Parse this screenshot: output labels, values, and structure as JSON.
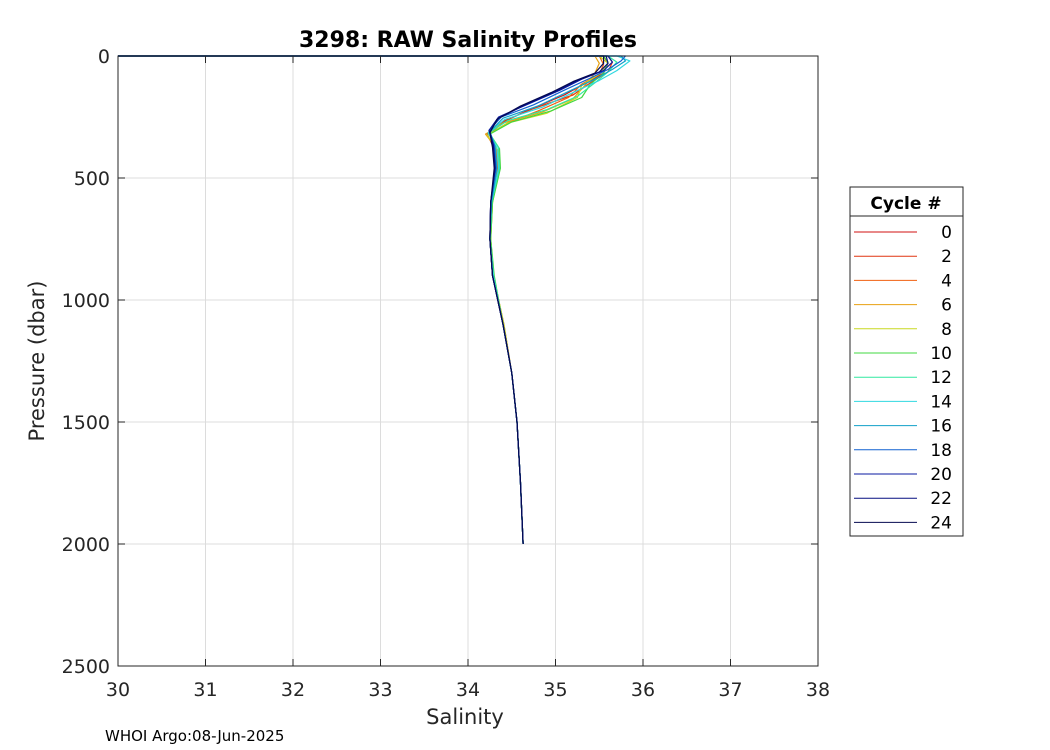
{
  "chart_data": {
    "type": "line",
    "title": "3298: RAW Salinity Profiles",
    "xlabel": "Salinity",
    "ylabel": "Pressure (dbar)",
    "xlim": [
      30,
      38
    ],
    "ylim": [
      0,
      2500
    ],
    "y_reversed": true,
    "grid": true,
    "xticks": [
      "30",
      "31",
      "32",
      "33",
      "34",
      "35",
      "36",
      "37",
      "38"
    ],
    "yticks": [
      "0",
      "500",
      "1000",
      "1500",
      "2000",
      "2500"
    ],
    "legend": {
      "title": "Cycle #",
      "placement": "outside-right",
      "entries": [
        "0",
        "2",
        "4",
        "6",
        "8",
        "10",
        "12",
        "14",
        "16",
        "18",
        "20",
        "22",
        "24"
      ],
      "colors": [
        "#d01010",
        "#e03510",
        "#f06010",
        "#e8a010",
        "#c8d820",
        "#40d840",
        "#30e8a0",
        "#30d8e0",
        "#10a0c8",
        "#1060d0",
        "#0a1aa0",
        "#050e80",
        "#050a50"
      ]
    },
    "series": [
      {
        "name": "0",
        "color": "#d01010",
        "x": [
          30.0,
          35.55,
          35.6,
          35.55,
          35.35,
          35.1,
          34.7,
          34.4,
          34.25,
          34.3,
          34.32,
          34.26,
          34.25,
          34.28,
          34.4,
          34.5,
          34.56,
          34.6,
          34.63
        ],
        "y": [
          0,
          0,
          30,
          70,
          110,
          160,
          220,
          270,
          320,
          380,
          460,
          600,
          750,
          900,
          1100,
          1300,
          1500,
          1750,
          2000
        ]
      },
      {
        "name": "2",
        "color": "#e03510",
        "x": [
          30.0,
          35.6,
          35.65,
          35.6,
          35.4,
          35.2,
          34.75,
          34.42,
          34.22,
          34.3,
          34.33,
          34.27,
          34.26,
          34.29,
          34.41,
          34.5,
          34.56,
          34.6,
          34.63
        ],
        "y": [
          0,
          0,
          25,
          65,
          110,
          160,
          215,
          265,
          320,
          380,
          460,
          600,
          750,
          900,
          1100,
          1300,
          1500,
          1750,
          2000
        ]
      },
      {
        "name": "4",
        "color": "#f06010",
        "x": [
          30.0,
          35.5,
          35.55,
          35.5,
          35.3,
          35.15,
          34.8,
          34.45,
          34.24,
          34.32,
          34.34,
          34.27,
          34.25,
          34.28,
          34.4,
          34.5,
          34.56,
          34.6,
          34.63
        ],
        "y": [
          0,
          0,
          35,
          75,
          115,
          170,
          225,
          275,
          320,
          380,
          460,
          600,
          750,
          900,
          1100,
          1300,
          1500,
          1750,
          2000
        ]
      },
      {
        "name": "6",
        "color": "#e8a010",
        "x": [
          30.0,
          35.45,
          35.5,
          35.45,
          35.35,
          35.2,
          34.85,
          34.4,
          34.2,
          34.33,
          34.35,
          34.28,
          34.26,
          34.29,
          34.4,
          34.5,
          34.56,
          34.6,
          34.63
        ],
        "y": [
          0,
          0,
          30,
          70,
          115,
          175,
          230,
          275,
          320,
          380,
          460,
          600,
          750,
          900,
          1100,
          1300,
          1500,
          1750,
          2000
        ]
      },
      {
        "name": "8",
        "color": "#c8d820",
        "x": [
          30.0,
          35.5,
          35.6,
          35.5,
          35.3,
          35.25,
          34.9,
          34.45,
          34.22,
          34.34,
          34.36,
          34.28,
          34.26,
          34.29,
          34.41,
          34.5,
          34.56,
          34.6,
          34.63
        ],
        "y": [
          0,
          0,
          30,
          75,
          120,
          170,
          235,
          275,
          325,
          385,
          460,
          600,
          750,
          900,
          1100,
          1300,
          1500,
          1750,
          2000
        ]
      },
      {
        "name": "10",
        "color": "#40d840",
        "x": [
          30.0,
          35.55,
          35.6,
          35.55,
          35.4,
          35.3,
          34.95,
          34.5,
          34.25,
          34.36,
          34.37,
          34.28,
          34.26,
          34.3,
          34.4,
          34.5,
          34.56,
          34.6,
          34.63
        ],
        "y": [
          0,
          0,
          25,
          70,
          115,
          170,
          225,
          270,
          320,
          380,
          460,
          600,
          750,
          900,
          1100,
          1300,
          1500,
          1750,
          2000
        ]
      },
      {
        "name": "12",
        "color": "#30e8a0",
        "x": [
          30.0,
          35.6,
          35.7,
          35.6,
          35.45,
          35.25,
          34.9,
          34.45,
          34.24,
          34.35,
          34.36,
          34.27,
          34.25,
          34.29,
          34.4,
          34.5,
          34.56,
          34.6,
          34.63
        ],
        "y": [
          0,
          0,
          25,
          65,
          110,
          165,
          220,
          265,
          315,
          375,
          460,
          600,
          750,
          900,
          1100,
          1300,
          1500,
          1750,
          2000
        ]
      },
      {
        "name": "14",
        "color": "#30d8e0",
        "x": [
          30.0,
          35.7,
          35.85,
          35.7,
          35.5,
          35.2,
          34.85,
          34.42,
          34.23,
          34.33,
          34.35,
          34.27,
          34.25,
          34.29,
          34.4,
          34.5,
          34.56,
          34.6,
          34.63
        ],
        "y": [
          0,
          0,
          20,
          60,
          100,
          150,
          210,
          260,
          315,
          375,
          460,
          600,
          750,
          900,
          1100,
          1300,
          1500,
          1750,
          2000
        ]
      },
      {
        "name": "16",
        "color": "#10a0c8",
        "x": [
          30.0,
          35.75,
          35.8,
          35.65,
          35.45,
          35.15,
          34.8,
          34.4,
          34.25,
          34.31,
          34.33,
          34.27,
          34.25,
          34.28,
          34.4,
          34.5,
          34.56,
          34.6,
          34.63
        ],
        "y": [
          0,
          0,
          20,
          55,
          95,
          145,
          205,
          255,
          310,
          370,
          460,
          600,
          750,
          900,
          1100,
          1300,
          1500,
          1750,
          2000
        ]
      },
      {
        "name": "18",
        "color": "#1060d0",
        "x": [
          30.0,
          35.8,
          35.75,
          35.6,
          35.4,
          35.1,
          34.75,
          34.38,
          34.24,
          34.3,
          34.32,
          34.26,
          34.25,
          34.28,
          34.4,
          34.5,
          34.56,
          34.6,
          34.63
        ],
        "y": [
          0,
          0,
          20,
          55,
          90,
          140,
          200,
          250,
          305,
          365,
          460,
          600,
          750,
          900,
          1100,
          1300,
          1500,
          1750,
          2000
        ]
      },
      {
        "name": "20",
        "color": "#0a1aa0",
        "x": [
          30.0,
          35.6,
          35.65,
          35.55,
          35.3,
          35.05,
          34.7,
          34.35,
          34.24,
          34.29,
          34.31,
          34.26,
          34.25,
          34.28,
          34.4,
          34.5,
          34.56,
          34.6,
          34.63
        ],
        "y": [
          0,
          0,
          25,
          60,
          95,
          140,
          195,
          250,
          305,
          365,
          460,
          600,
          750,
          900,
          1100,
          1300,
          1500,
          1750,
          2000
        ]
      },
      {
        "name": "22",
        "color": "#050e80",
        "x": [
          30.0,
          35.58,
          35.6,
          35.5,
          35.25,
          35.0,
          34.65,
          34.35,
          34.25,
          34.29,
          34.31,
          34.26,
          34.25,
          34.28,
          34.4,
          34.5,
          34.56,
          34.6,
          34.63
        ],
        "y": [
          0,
          0,
          30,
          65,
          100,
          145,
          200,
          255,
          310,
          370,
          460,
          600,
          750,
          900,
          1100,
          1300,
          1500,
          1750,
          2000
        ]
      },
      {
        "name": "24",
        "color": "#050a50",
        "x": [
          30.0,
          35.55,
          35.55,
          35.45,
          35.2,
          34.95,
          34.6,
          34.33,
          34.25,
          34.28,
          34.3,
          34.26,
          34.25,
          34.28,
          34.4,
          34.5,
          34.56,
          34.6,
          34.63
        ],
        "y": [
          0,
          0,
          30,
          70,
          105,
          150,
          205,
          260,
          315,
          375,
          460,
          600,
          750,
          900,
          1100,
          1300,
          1500,
          1750,
          2000
        ]
      }
    ]
  },
  "footer": "WHOI Argo:08-Jun-2025"
}
